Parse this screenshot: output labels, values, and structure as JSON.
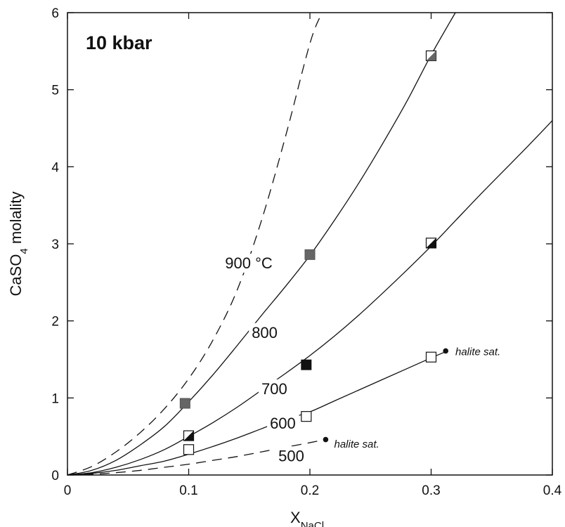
{
  "chart_data": {
    "type": "line",
    "title": "10 kbar",
    "xlabel": "X",
    "xlabel_sub": "NaCl",
    "ylabel": "CaSO",
    "ylabel_sub": "4",
    "ylabel_suffix": " molality",
    "xlim": [
      0,
      0.4
    ],
    "ylim": [
      0,
      6
    ],
    "xticks": [
      "0",
      "0.1",
      "0.2",
      "0.3",
      "0.4"
    ],
    "yticks": [
      "0",
      "1",
      "2",
      "3",
      "4",
      "5",
      "6"
    ],
    "grid": false,
    "legend": "none",
    "series": [
      {
        "name": "900 °C",
        "style": "dashed",
        "x": [
          0,
          0.02,
          0.04,
          0.06,
          0.08,
          0.1,
          0.12,
          0.14,
          0.16,
          0.18,
          0.2,
          0.21
        ],
        "y": [
          0,
          0.11,
          0.3,
          0.55,
          0.86,
          1.25,
          1.75,
          2.4,
          3.3,
          4.4,
          5.6,
          6.0
        ]
      },
      {
        "name": "800",
        "style": "solid",
        "x": [
          0,
          0.02,
          0.04,
          0.06,
          0.08,
          0.1,
          0.12,
          0.14,
          0.16,
          0.18,
          0.2,
          0.22,
          0.24,
          0.26,
          0.28,
          0.3,
          0.32
        ],
        "y": [
          0,
          0.06,
          0.19,
          0.39,
          0.63,
          0.95,
          1.3,
          1.68,
          2.07,
          2.45,
          2.85,
          3.3,
          3.78,
          4.3,
          4.85,
          5.45,
          6.0
        ],
        "points": [
          {
            "x": 0.097,
            "y": 0.93,
            "marker": "gray-square"
          },
          {
            "x": 0.2,
            "y": 2.86,
            "marker": "gray-square"
          },
          {
            "x": 0.3,
            "y": 5.44,
            "marker": "half-gray-square"
          }
        ]
      },
      {
        "name": "700",
        "style": "solid",
        "x": [
          0,
          0.02,
          0.04,
          0.06,
          0.08,
          0.1,
          0.12,
          0.14,
          0.16,
          0.18,
          0.2,
          0.22,
          0.24,
          0.26,
          0.28,
          0.3,
          0.32,
          0.34,
          0.36,
          0.38,
          0.4
        ],
        "y": [
          0,
          0.03,
          0.1,
          0.2,
          0.33,
          0.5,
          0.68,
          0.88,
          1.1,
          1.32,
          1.55,
          1.8,
          2.07,
          2.36,
          2.66,
          2.97,
          3.3,
          3.63,
          3.95,
          4.27,
          4.6
        ],
        "points": [
          {
            "x": 0.1,
            "y": 0.51,
            "marker": "half-black-square"
          },
          {
            "x": 0.197,
            "y": 1.43,
            "marker": "black-square"
          },
          {
            "x": 0.3,
            "y": 3.01,
            "marker": "half-black-square"
          }
        ]
      },
      {
        "name": "600",
        "style": "solid",
        "x": [
          0,
          0.02,
          0.04,
          0.06,
          0.08,
          0.1,
          0.12,
          0.14,
          0.16,
          0.18,
          0.2,
          0.22,
          0.24,
          0.26,
          0.28,
          0.3,
          0.312
        ],
        "y": [
          0,
          0.02,
          0.06,
          0.12,
          0.18,
          0.27,
          0.37,
          0.48,
          0.6,
          0.72,
          0.82,
          0.96,
          1.1,
          1.24,
          1.38,
          1.52,
          1.6
        ],
        "points": [
          {
            "x": 0.1,
            "y": 0.33,
            "marker": "open-square"
          },
          {
            "x": 0.197,
            "y": 0.76,
            "marker": "open-square"
          },
          {
            "x": 0.3,
            "y": 1.53,
            "marker": "open-square"
          }
        ],
        "end_point": {
          "x": 0.312,
          "y": 1.61
        }
      },
      {
        "name": "500",
        "style": "dashed",
        "x": [
          0,
          0.02,
          0.04,
          0.06,
          0.08,
          0.1,
          0.12,
          0.14,
          0.16,
          0.18,
          0.2,
          0.213
        ],
        "y": [
          0,
          0.01,
          0.03,
          0.06,
          0.1,
          0.14,
          0.19,
          0.24,
          0.3,
          0.36,
          0.42,
          0.46
        ],
        "end_point": {
          "x": 0.213,
          "y": 0.46
        }
      }
    ],
    "curve_labels": [
      {
        "text": "900 °C",
        "x": 0.13,
        "y": 2.68
      },
      {
        "text": "800",
        "x": 0.152,
        "y": 1.78
      },
      {
        "text": "700",
        "x": 0.16,
        "y": 1.05
      },
      {
        "text": "600",
        "x": 0.167,
        "y": 0.6
      },
      {
        "text": "500",
        "x": 0.174,
        "y": 0.18
      }
    ],
    "annotations": [
      {
        "text": "halite sat.",
        "x": 0.32,
        "y": 1.6
      },
      {
        "text": "halite sat.",
        "x": 0.22,
        "y": 0.4
      }
    ]
  }
}
